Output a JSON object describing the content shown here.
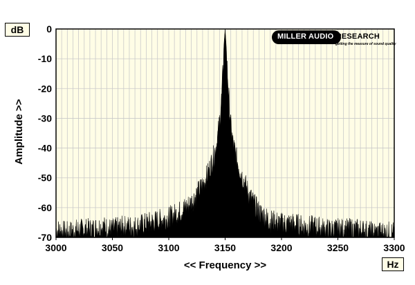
{
  "chart_data": {
    "type": "area",
    "title": "",
    "xlabel": "<< Frequency >>",
    "ylabel": "Amplitude >>",
    "x_unit": "Hz",
    "y_unit": "dB",
    "xlim": [
      3000,
      3300
    ],
    "ylim": [
      -70,
      0
    ],
    "xticks": [
      "3000",
      "3050",
      "3100",
      "3150",
      "3200",
      "3250",
      "3300"
    ],
    "yticks": [
      "0",
      "-10",
      "-20",
      "-30",
      "-40",
      "-50",
      "-60",
      "-70"
    ],
    "grid": true,
    "series": [
      {
        "x": [
          3000,
          3010,
          3020,
          3030,
          3040,
          3050,
          3060,
          3070,
          3080,
          3090,
          3100,
          3110,
          3120,
          3125,
          3130,
          3135,
          3140,
          3143,
          3145,
          3147,
          3149,
          3150,
          3151,
          3153,
          3155,
          3157,
          3160,
          3165,
          3170,
          3175,
          3180,
          3190,
          3200,
          3210,
          3220,
          3230,
          3240,
          3250,
          3260,
          3270,
          3280,
          3290,
          3300
        ],
        "y": [
          -66,
          -67,
          -66,
          -66,
          -65,
          -66,
          -65,
          -65,
          -64,
          -63,
          -62,
          -60,
          -57,
          -54,
          -51,
          -47,
          -41,
          -36,
          -30,
          -21,
          -5,
          0,
          -6,
          -20,
          -31,
          -37,
          -42,
          -48,
          -53,
          -57,
          -60,
          -63,
          -64,
          -64,
          -65,
          -65,
          -66,
          -66,
          -66,
          -66,
          -67,
          -67,
          -67
        ]
      }
    ]
  },
  "logo": {
    "name_part1": "MILLER AUDIO ",
    "name_part2": "RESEARCH",
    "tagline": "getting the measure of sound quality"
  },
  "colors": {
    "plot_background": "#fffde6",
    "grid": "#c9c9c9",
    "trace": "#000000"
  }
}
